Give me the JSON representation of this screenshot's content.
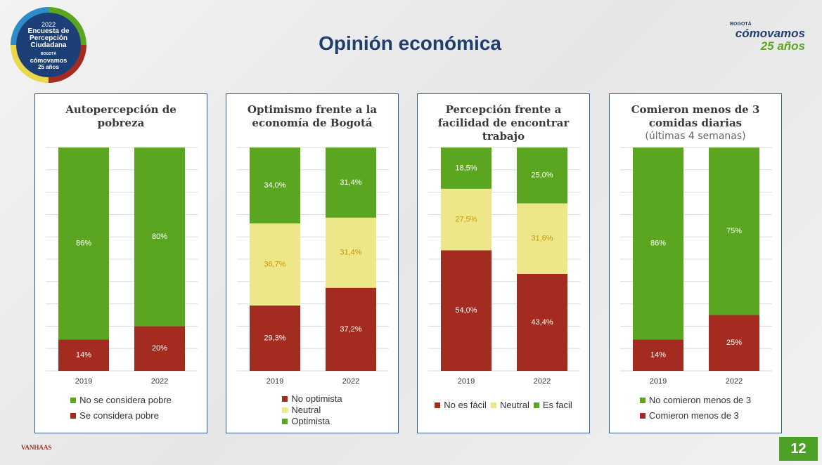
{
  "slide": {
    "title": "Opinión económica",
    "page_number": "12",
    "left_logo": {
      "year": "2022",
      "line1": "Encuesta de",
      "line2": "Percepción",
      "line3": "Ciudadana",
      "city": "BOGOTÁ",
      "brand": "cómovamos",
      "anniversary": "25 años"
    },
    "right_logo": {
      "city": "BOGOTÁ",
      "brand": "cómovamos",
      "anniversary": "25 años"
    },
    "footer": "VANHAAS"
  },
  "chart_data": [
    {
      "type": "bar",
      "stacked": true,
      "title": "Autopercepción de pobreza",
      "categories": [
        "2019",
        "2022"
      ],
      "ylim": [
        0,
        100
      ],
      "yticks": [
        0,
        10,
        20,
        30,
        40,
        50,
        60,
        70,
        80,
        90,
        100
      ],
      "grid": true,
      "legend_reversed": true,
      "legend_layout": "column",
      "series": [
        {
          "name": "Se considera pobre",
          "color": "#a42b1f",
          "label_color": "#ffffff",
          "values": [
            14,
            20
          ],
          "value_labels": [
            "14%",
            "20%"
          ]
        },
        {
          "name": "No se considera pobre",
          "color": "#5ba621",
          "label_color": "#ffffff",
          "values": [
            86,
            80
          ],
          "value_labels": [
            "86%",
            "80%"
          ]
        }
      ]
    },
    {
      "type": "bar",
      "stacked": true,
      "title": "Optimismo frente a la economía de Bogotá",
      "categories": [
        "2019",
        "2022"
      ],
      "ylim": [
        0,
        100
      ],
      "yticks": [
        0,
        10,
        20,
        30,
        40,
        50,
        60,
        70,
        80,
        90,
        100
      ],
      "grid": true,
      "legend_reversed": false,
      "legend_layout": "column",
      "series": [
        {
          "name": "No optimista",
          "color": "#a42b1f",
          "label_color": "#ffffff",
          "values": [
            29.3,
            37.2
          ],
          "value_labels": [
            "29,3%",
            "37,2%"
          ]
        },
        {
          "name": "Neutral",
          "color": "#ede78a",
          "label_color": "#c59a00",
          "values": [
            36.7,
            31.4
          ],
          "value_labels": [
            "36,7%",
            "31,4%"
          ]
        },
        {
          "name": "Optimista",
          "color": "#5ba621",
          "label_color": "#ffffff",
          "values": [
            34.0,
            31.4
          ],
          "value_labels": [
            "34,0%",
            "31,4%"
          ]
        }
      ]
    },
    {
      "type": "bar",
      "stacked": true,
      "title": "Percepción frente a facilidad de encontrar trabajo",
      "categories": [
        "2019",
        "2022"
      ],
      "ylim": [
        0,
        100
      ],
      "yticks": [
        0,
        10,
        20,
        30,
        40,
        50,
        60,
        70,
        80,
        90,
        100
      ],
      "grid": true,
      "legend_reversed": false,
      "legend_layout": "row",
      "series": [
        {
          "name": "No es fácil",
          "color": "#a42b1f",
          "label_color": "#ffffff",
          "values": [
            54.0,
            43.4
          ],
          "value_labels": [
            "54,0%",
            "43,4%"
          ]
        },
        {
          "name": "Neutral",
          "color": "#ede78a",
          "label_color": "#c59a00",
          "values": [
            27.5,
            31.6
          ],
          "value_labels": [
            "27,5%",
            "31,6%"
          ]
        },
        {
          "name": "Es facil",
          "color": "#5ba621",
          "label_color": "#ffffff",
          "values": [
            18.5,
            25.0
          ],
          "value_labels": [
            "18,5%",
            "25,0%"
          ]
        }
      ]
    },
    {
      "type": "bar",
      "stacked": true,
      "title": "Comieron menos de 3 comidas diarias",
      "subtitle": "(últimas 4 semanas)",
      "categories": [
        "2019",
        "2022"
      ],
      "ylim": [
        0,
        100
      ],
      "yticks": [
        0,
        10,
        20,
        30,
        40,
        50,
        60,
        70,
        80,
        90,
        100
      ],
      "grid": true,
      "legend_reversed": true,
      "legend_layout": "column",
      "series": [
        {
          "name": "Comieron menos de 3",
          "color": "#a42b1f",
          "label_color": "#ffffff",
          "values": [
            14,
            25
          ],
          "value_labels": [
            "14%",
            "25%"
          ]
        },
        {
          "name": "No comieron menos de 3",
          "color": "#5ba621",
          "label_color": "#ffffff",
          "values": [
            86,
            75
          ],
          "value_labels": [
            "86%",
            "75%"
          ]
        }
      ]
    }
  ]
}
